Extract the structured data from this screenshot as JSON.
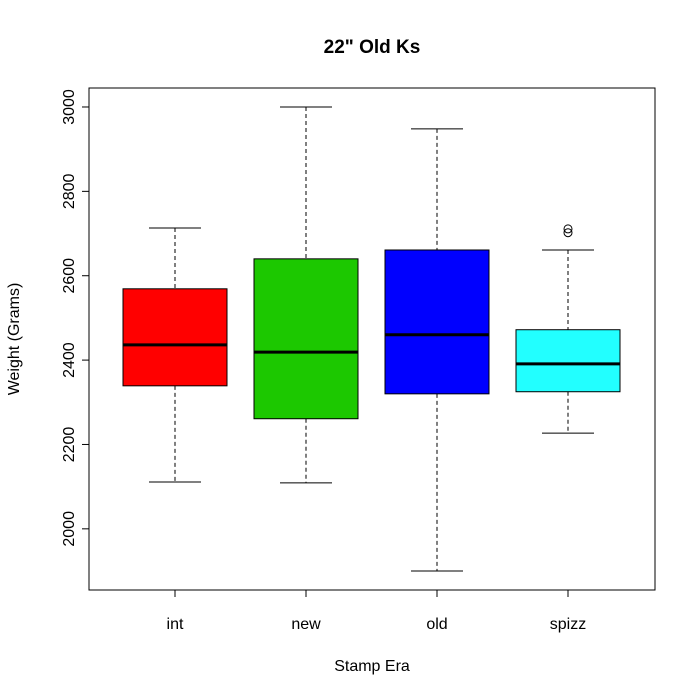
{
  "chart_data": {
    "type": "box",
    "title": "22\" Old Ks",
    "xlabel": "Stamp Era",
    "ylabel": "Weight (Grams)",
    "ylim": [
      1855,
      3045
    ],
    "yticks": [
      2000,
      2200,
      2400,
      2600,
      2800,
      3000
    ],
    "categories": [
      "int",
      "new",
      "old",
      "spizz"
    ],
    "boxes": [
      {
        "name": "int",
        "color": "#FF0000",
        "whisker_low": 2111,
        "q1": 2339,
        "median": 2436,
        "q3": 2569,
        "whisker_high": 2713,
        "outliers": []
      },
      {
        "name": "new",
        "color": "#1CC800",
        "whisker_low": 2109,
        "q1": 2261,
        "median": 2419,
        "q3": 2640,
        "whisker_high": 3000,
        "outliers": []
      },
      {
        "name": "old",
        "color": "#0000FF",
        "whisker_low": 1900,
        "q1": 2320,
        "median": 2460,
        "q3": 2661,
        "whisker_high": 2948,
        "outliers": []
      },
      {
        "name": "spizz",
        "color": "#22FFFF",
        "whisker_low": 2227,
        "q1": 2325,
        "median": 2391,
        "q3": 2472,
        "whisker_high": 2661,
        "outliers": [
          2711,
          2702
        ]
      }
    ],
    "grid": false
  }
}
